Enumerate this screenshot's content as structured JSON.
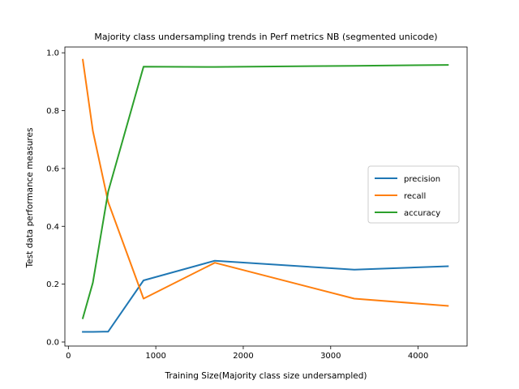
{
  "chart_data": {
    "type": "line",
    "title": "Majority class undersampling trends in Perf metrics NB (segmented unicode)",
    "xlabel": "Training Size(Majority class size undersampled)",
    "ylabel": "Test data performance measures",
    "xlim": [
      -40,
      4560
    ],
    "ylim": [
      -0.014,
      1.02
    ],
    "xticks": [
      0,
      1000,
      2000,
      3000,
      4000
    ],
    "yticks": [
      0.0,
      0.2,
      0.4,
      0.6,
      0.8,
      1.0
    ],
    "xtick_labels": [
      "0",
      "1000",
      "2000",
      "3000",
      "4000"
    ],
    "ytick_labels": [
      "0.0",
      "0.2",
      "0.4",
      "0.6",
      "0.8",
      "1.0"
    ],
    "grid": false,
    "legend": "center-right",
    "x": [
      165,
      280,
      455,
      860,
      1675,
      3270,
      4340
    ],
    "series": [
      {
        "name": "precision",
        "color": "#1f77b4",
        "values": [
          0.035,
          0.035,
          0.036,
          0.213,
          0.281,
          0.25,
          0.262
        ]
      },
      {
        "name": "recall",
        "color": "#ff7f0e",
        "values": [
          0.976,
          0.73,
          0.484,
          0.15,
          0.274,
          0.15,
          0.125
        ]
      },
      {
        "name": "accuracy",
        "color": "#2ca02c",
        "values": [
          0.082,
          0.205,
          0.52,
          0.952,
          0.951,
          0.955,
          0.958
        ]
      }
    ]
  }
}
